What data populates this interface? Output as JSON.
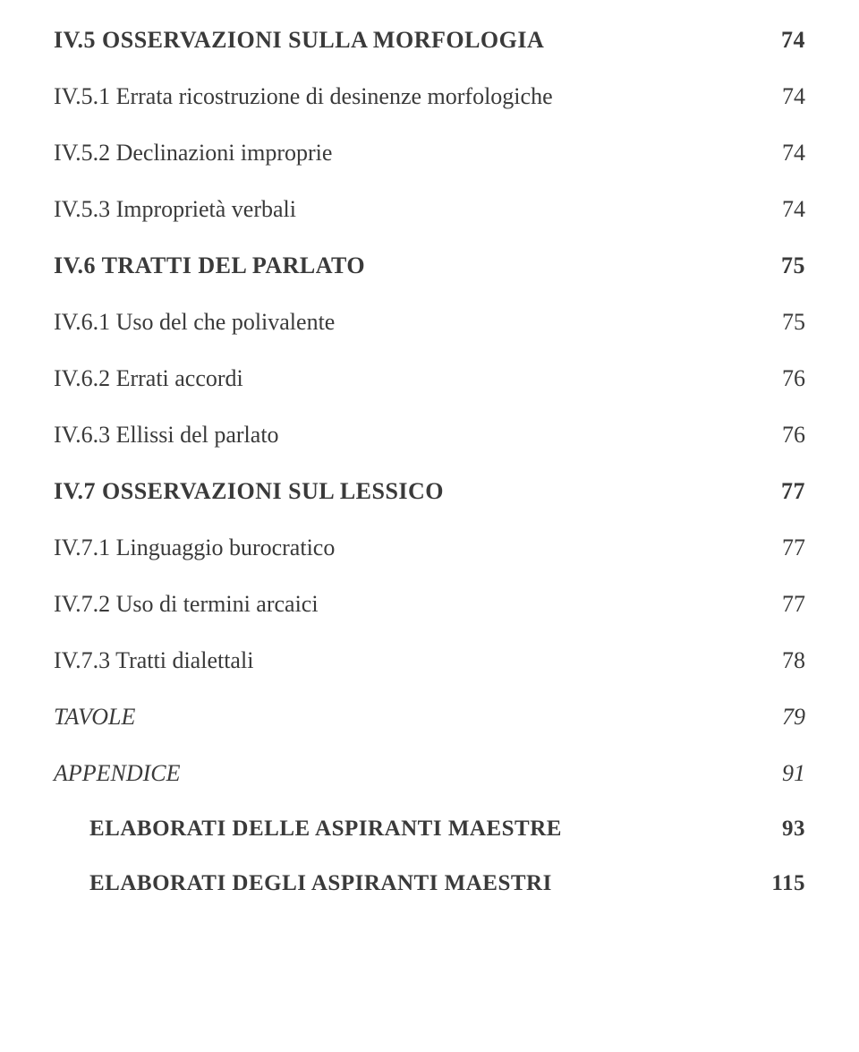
{
  "colors": {
    "text": "#3a3a3a",
    "background": "#ffffff"
  },
  "typography": {
    "font_family": "Georgia, Times New Roman, serif",
    "section_fontsize": 26,
    "sub_fontsize": 26,
    "section_weight": "bold",
    "sub_weight": "normal"
  },
  "entries": [
    {
      "title": "IV.5 OSSERVAZIONI SULLA MORFOLOGIA",
      "page": "74",
      "level": "section"
    },
    {
      "title": "IV.5.1 Errata ricostruzione di desinenze morfologiche",
      "page": "74",
      "level": "sub"
    },
    {
      "title": "IV.5.2 Declinazioni improprie",
      "page": "74",
      "level": "sub"
    },
    {
      "title": "IV.5.3 Improprietà verbali",
      "page": "74",
      "level": "sub"
    },
    {
      "title": "IV.6 TRATTI DEL PARLATO",
      "page": "75",
      "level": "section"
    },
    {
      "title": "IV.6.1 Uso del che polivalente",
      "page": "75",
      "level": "sub"
    },
    {
      "title": "IV.6.2 Errati accordi",
      "page": "76",
      "level": "sub"
    },
    {
      "title": "IV.6.3 Ellissi del parlato",
      "page": "76",
      "level": "sub"
    },
    {
      "title": "IV.7 OSSERVAZIONI SUL LESSICO",
      "page": "77",
      "level": "section"
    },
    {
      "title": "IV.7.1 Linguaggio burocratico",
      "page": "77",
      "level": "sub"
    },
    {
      "title": "IV.7.2 Uso di termini arcaici",
      "page": "77",
      "level": "sub"
    },
    {
      "title": "IV.7.3 Tratti dialettali",
      "page": "78",
      "level": "sub"
    },
    {
      "title": "TAVOLE",
      "page": "79",
      "level": "italic"
    },
    {
      "title": "APPENDICE",
      "page": "91",
      "level": "italic"
    },
    {
      "title": "ELABORATI DELLE ASPIRANTI MAESTRE",
      "page": "93",
      "level": "appendix-sub",
      "indent": true
    },
    {
      "title": "ELABORATI DEGLI ASPIRANTI MAESTRI",
      "page": "115",
      "level": "appendix-sub",
      "indent": true
    }
  ]
}
